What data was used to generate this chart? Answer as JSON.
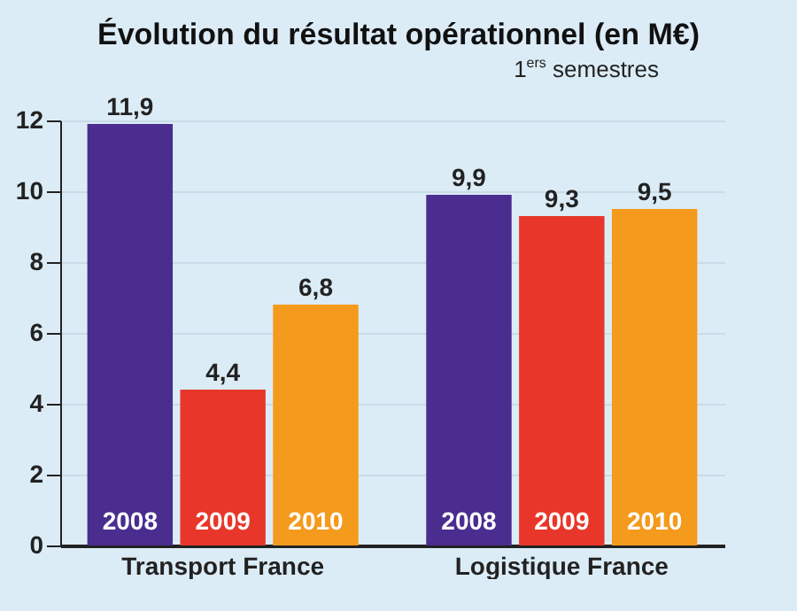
{
  "chart_data": {
    "type": "bar",
    "title": "Évolution du résultat opérationnel (en M€)",
    "subtitle": "1$^{ers}$ semestres",
    "categories": [
      "Transport France",
      "Logistique France"
    ],
    "series": [
      {
        "name": "2008",
        "color": "#4a2d8f",
        "values": [
          11.9,
          9.9
        ],
        "value_labels": [
          "11,9",
          "9,9"
        ]
      },
      {
        "name": "2009",
        "color": "#e8372a",
        "values": [
          4.4,
          9.3
        ],
        "value_labels": [
          "4,4",
          "9,3"
        ]
      },
      {
        "name": "2010",
        "color": "#f49a1c",
        "values": [
          6.8,
          9.5
        ],
        "value_labels": [
          "6,8",
          "9,5"
        ]
      }
    ],
    "ylim": [
      0,
      12
    ],
    "yticks": [
      0,
      2,
      4,
      6,
      8,
      10,
      12
    ],
    "grid": "y",
    "legend": false
  }
}
